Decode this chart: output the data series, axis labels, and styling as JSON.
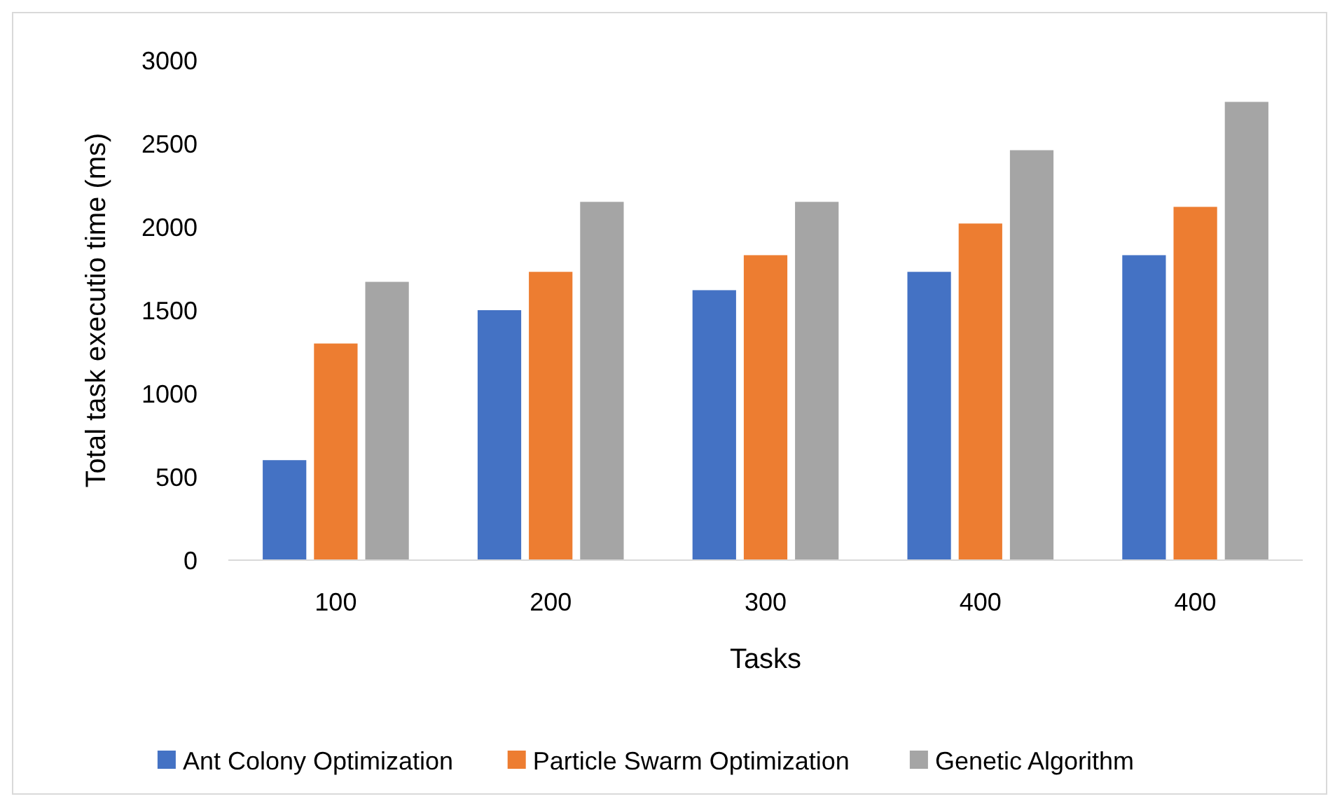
{
  "chart_data": {
    "type": "bar",
    "xlabel": "Tasks",
    "ylabel": "Total task executio time (ms)",
    "categories": [
      "100",
      "200",
      "300",
      "400",
      "400"
    ],
    "series": [
      {
        "name": "Ant Colony Optimization",
        "color": "#4472c4",
        "values": [
          600,
          1500,
          1620,
          1730,
          1830
        ]
      },
      {
        "name": "Particle Swarm Optimization",
        "color": "#ed7d31",
        "values": [
          1300,
          1730,
          1830,
          2020,
          2120
        ]
      },
      {
        "name": "Genetic Algorithm",
        "color": "#a5a5a5",
        "values": [
          1670,
          2150,
          2150,
          2460,
          2750
        ]
      }
    ],
    "ylim": [
      0,
      3000
    ],
    "yticks": [
      0,
      500,
      1000,
      1500,
      2000,
      2500,
      3000
    ],
    "grid": false,
    "legend": "bottom"
  }
}
